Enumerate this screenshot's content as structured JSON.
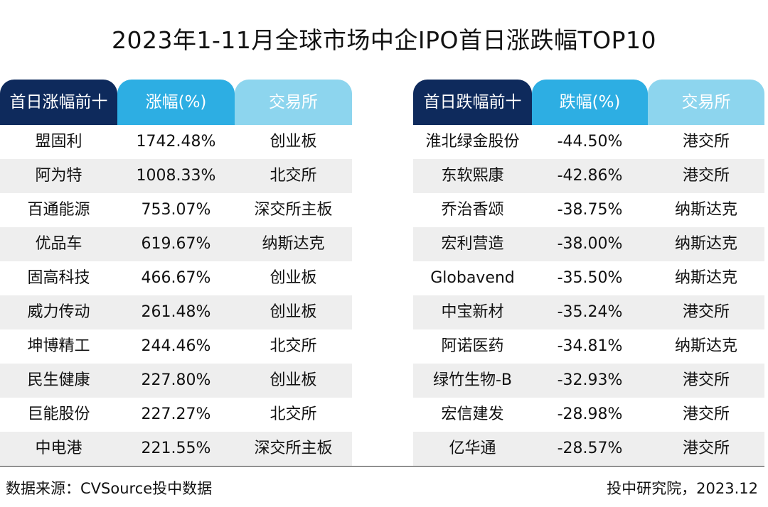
{
  "page": {
    "title": "2023年1-11月全球市场中企IPO首日涨跌幅TOP10",
    "source": "数据来源：CVSource投中数据",
    "credit": "投中研究院，2023.12"
  },
  "colors": {
    "header_dark": "#0e2a5c",
    "header_mid": "#2daee3",
    "header_light": "#8dd5ee",
    "row_alt": "#eeeeee"
  },
  "chart_data": [
    {
      "type": "table",
      "columns": [
        "首日涨幅前十",
        "涨幅(%)",
        "交易所"
      ],
      "rows": [
        [
          "盟固利",
          "1742.48%",
          "创业板"
        ],
        [
          "阿为特",
          "1008.33%",
          "北交所"
        ],
        [
          "百通能源",
          "753.07%",
          "深交所主板"
        ],
        [
          "优品车",
          "619.67%",
          "纳斯达克"
        ],
        [
          "固高科技",
          "466.67%",
          "创业板"
        ],
        [
          "威力传动",
          "261.48%",
          "创业板"
        ],
        [
          "坤博精工",
          "244.46%",
          "北交所"
        ],
        [
          "民生健康",
          "227.80%",
          "创业板"
        ],
        [
          "巨能股份",
          "227.27%",
          "北交所"
        ],
        [
          "中电港",
          "221.55%",
          "深交所主板"
        ]
      ]
    },
    {
      "type": "table",
      "columns": [
        "首日跌幅前十",
        "跌幅(%)",
        "交易所"
      ],
      "rows": [
        [
          "淮北绿金股份",
          "-44.50%",
          "港交所"
        ],
        [
          "东软熙康",
          "-42.86%",
          "港交所"
        ],
        [
          "乔治香颂",
          "-38.75%",
          "纳斯达克"
        ],
        [
          "宏利营造",
          "-38.00%",
          "纳斯达克"
        ],
        [
          "Globavend",
          "-35.50%",
          "纳斯达克"
        ],
        [
          "中宝新材",
          "-35.24%",
          "港交所"
        ],
        [
          "阿诺医药",
          "-34.81%",
          "纳斯达克"
        ],
        [
          "绿竹生物-B",
          "-32.93%",
          "港交所"
        ],
        [
          "宏信建发",
          "-28.98%",
          "港交所"
        ],
        [
          "亿华通",
          "-28.57%",
          "港交所"
        ]
      ]
    }
  ]
}
